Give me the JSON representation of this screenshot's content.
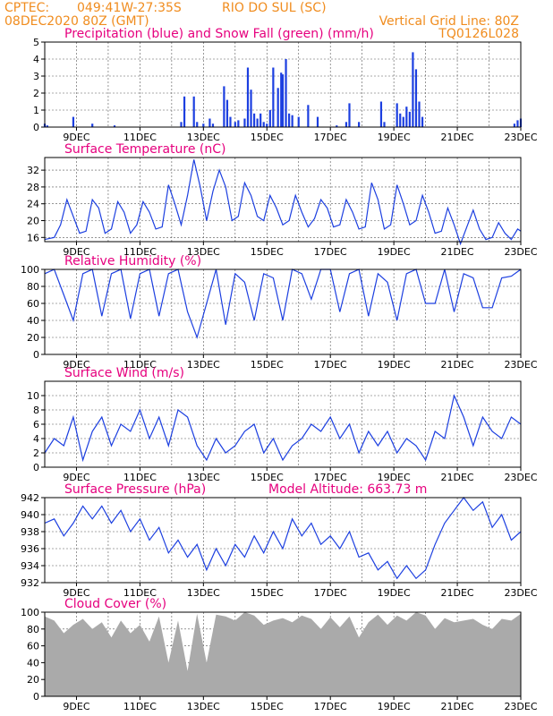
{
  "header": {
    "source": "CPTEC:",
    "coords": "049:41W-27:35S",
    "location": "RIO DO SUL (SC)",
    "run": "08DEC2020 80Z (GMT)",
    "vgrid": "Vertical Grid Line: 80Z",
    "code": "TQ0126L028"
  },
  "colors": {
    "header": "#f08c1e",
    "title": "#e6007e",
    "series": "#1c3fe0",
    "snow": "#22aa22",
    "cloud": "#aaaaaa",
    "grid": "#555555"
  },
  "date_ticks": [
    "9DEC",
    "11DEC",
    "13DEC",
    "15DEC",
    "17DEC",
    "19DEC",
    "21DEC",
    "23DEC"
  ],
  "chart_data": [
    {
      "type": "bar",
      "title": "Precipitation (blue) and Snow Fall (green) (mm/h)",
      "ylim": [
        0,
        5
      ],
      "yticks": [
        "0",
        "1",
        "2",
        "3",
        "4",
        "5"
      ],
      "series": [
        {
          "name": "Precipitation",
          "x": [
            8.0,
            8.08,
            8.9,
            9.5,
            10.2,
            12.3,
            12.4,
            12.7,
            12.8,
            13.0,
            13.2,
            13.3,
            13.65,
            13.75,
            13.85,
            14.0,
            14.1,
            14.3,
            14.4,
            14.5,
            14.6,
            14.7,
            14.8,
            14.9,
            15.0,
            15.1,
            15.2,
            15.35,
            15.45,
            15.5,
            15.6,
            15.7,
            15.8,
            16.0,
            16.3,
            16.6,
            17.2,
            17.5,
            17.6,
            17.9,
            18.6,
            18.7,
            19.1,
            19.2,
            19.3,
            19.4,
            19.5,
            19.6,
            19.7,
            19.8,
            19.9,
            22.8,
            22.9,
            23.0
          ],
          "values": [
            0.2,
            0.1,
            0.6,
            0.2,
            0.1,
            0.3,
            1.8,
            1.8,
            0.3,
            0.2,
            0.5,
            0.2,
            2.4,
            1.6,
            0.6,
            0.3,
            0.4,
            0.5,
            3.5,
            2.2,
            0.8,
            0.5,
            0.8,
            0.3,
            0.2,
            1.0,
            3.5,
            2.3,
            3.2,
            3.1,
            4.0,
            0.8,
            0.7,
            0.6,
            1.3,
            0.6,
            0.1,
            0.3,
            1.4,
            0.3,
            1.5,
            0.3,
            1.4,
            0.8,
            0.6,
            1.2,
            0.9,
            4.4,
            3.4,
            1.5,
            0.6,
            0.2,
            0.4,
            0.5
          ]
        },
        {
          "name": "Snow Fall",
          "x": [],
          "values": []
        }
      ]
    },
    {
      "type": "line",
      "title": "Surface Temperature (nC)",
      "ylim": [
        15,
        35
      ],
      "yticks": [
        "16",
        "20",
        "24",
        "28",
        "32"
      ],
      "x": [
        8.0,
        8.3,
        8.5,
        8.7,
        8.9,
        9.1,
        9.3,
        9.5,
        9.7,
        9.9,
        10.1,
        10.3,
        10.5,
        10.7,
        10.9,
        11.1,
        11.3,
        11.5,
        11.7,
        11.9,
        12.1,
        12.3,
        12.5,
        12.7,
        12.9,
        13.1,
        13.3,
        13.5,
        13.7,
        13.9,
        14.1,
        14.3,
        14.5,
        14.7,
        14.9,
        15.1,
        15.3,
        15.5,
        15.7,
        15.9,
        16.1,
        16.3,
        16.5,
        16.7,
        16.9,
        17.1,
        17.3,
        17.5,
        17.7,
        17.9,
        18.1,
        18.3,
        18.5,
        18.7,
        18.9,
        19.1,
        19.3,
        19.5,
        19.7,
        19.9,
        20.1,
        20.3,
        20.5,
        20.7,
        20.9,
        21.1,
        21.3,
        21.5,
        21.7,
        21.9,
        22.1,
        22.3,
        22.5,
        22.7,
        22.9,
        23.0
      ],
      "values": [
        15.5,
        16.0,
        19.0,
        25.0,
        21.0,
        17.0,
        17.5,
        25.0,
        23.0,
        17.0,
        18.0,
        24.5,
        22.0,
        17.0,
        19.0,
        24.5,
        22.0,
        18.0,
        18.5,
        28.5,
        24.0,
        19.0,
        26.0,
        34.5,
        28.0,
        20.0,
        27.0,
        32.0,
        28.0,
        20.0,
        21.0,
        29.0,
        26.0,
        21.0,
        20.0,
        26.0,
        23.0,
        19.0,
        20.0,
        26.0,
        22.0,
        18.5,
        20.5,
        25.0,
        23.0,
        18.5,
        19.0,
        25.0,
        22.0,
        18.0,
        18.5,
        29.0,
        25.0,
        18.0,
        19.0,
        28.5,
        24.0,
        19.0,
        20.0,
        26.0,
        22.0,
        17.0,
        17.5,
        23.0,
        19.0,
        14.5,
        18.5,
        22.5,
        18.0,
        15.5,
        16.0,
        19.5,
        17.0,
        15.5,
        18.0,
        17.5
      ]
    },
    {
      "type": "line",
      "title": "Relative Humidity (%)",
      "ylim": [
        0,
        100
      ],
      "yticks": [
        "0",
        "20",
        "40",
        "60",
        "80",
        "100"
      ],
      "x": [
        8.0,
        8.3,
        8.6,
        8.9,
        9.2,
        9.5,
        9.8,
        10.1,
        10.4,
        10.7,
        11.0,
        11.3,
        11.6,
        11.9,
        12.2,
        12.5,
        12.8,
        13.1,
        13.4,
        13.7,
        14.0,
        14.3,
        14.6,
        14.9,
        15.2,
        15.5,
        15.8,
        16.1,
        16.4,
        16.7,
        17.0,
        17.3,
        17.6,
        17.9,
        18.2,
        18.5,
        18.8,
        19.1,
        19.4,
        19.7,
        20.0,
        20.3,
        20.6,
        20.9,
        21.2,
        21.5,
        21.8,
        22.1,
        22.4,
        22.7,
        23.0
      ],
      "values": [
        95,
        100,
        70,
        40,
        95,
        100,
        45,
        95,
        100,
        42,
        95,
        100,
        45,
        95,
        100,
        50,
        20,
        60,
        100,
        35,
        95,
        85,
        40,
        95,
        90,
        40,
        100,
        95,
        65,
        100,
        100,
        50,
        95,
        100,
        45,
        95,
        85,
        40,
        95,
        100,
        60,
        60,
        100,
        50,
        95,
        90,
        55,
        55,
        90,
        92,
        100
      ]
    },
    {
      "type": "line",
      "title": "Surface Wind (m/s)",
      "ylim": [
        0,
        12
      ],
      "yticks": [
        "0",
        "2",
        "4",
        "6",
        "8",
        "10"
      ],
      "x": [
        8.0,
        8.3,
        8.6,
        8.9,
        9.2,
        9.5,
        9.8,
        10.1,
        10.4,
        10.7,
        11.0,
        11.3,
        11.6,
        11.9,
        12.2,
        12.5,
        12.8,
        13.1,
        13.4,
        13.7,
        14.0,
        14.3,
        14.6,
        14.9,
        15.2,
        15.5,
        15.8,
        16.1,
        16.4,
        16.7,
        17.0,
        17.3,
        17.6,
        17.9,
        18.2,
        18.5,
        18.8,
        19.1,
        19.4,
        19.7,
        20.0,
        20.3,
        20.6,
        20.9,
        21.2,
        21.5,
        21.8,
        22.1,
        22.4,
        22.7,
        23.0
      ],
      "values": [
        2,
        4,
        3,
        7,
        1,
        5,
        7,
        3,
        6,
        5,
        8,
        4,
        7,
        3,
        8,
        7,
        3,
        1,
        4,
        2,
        3,
        5,
        6,
        2,
        4,
        1,
        3,
        4,
        6,
        5,
        7,
        4,
        6,
        2,
        5,
        3,
        5,
        2,
        4,
        3,
        1,
        5,
        4,
        10,
        7,
        3,
        7,
        5,
        4,
        7,
        6
      ]
    },
    {
      "type": "line",
      "title": "Surface Pressure (hPa)",
      "annotation": "Model Altitude: 663.73 m",
      "ylim": [
        932,
        942
      ],
      "yticks": [
        "932",
        "934",
        "936",
        "938",
        "940",
        "942"
      ],
      "x": [
        8.0,
        8.3,
        8.6,
        8.9,
        9.2,
        9.5,
        9.8,
        10.1,
        10.4,
        10.7,
        11.0,
        11.3,
        11.6,
        11.9,
        12.2,
        12.5,
        12.8,
        13.1,
        13.4,
        13.7,
        14.0,
        14.3,
        14.6,
        14.9,
        15.2,
        15.5,
        15.8,
        16.1,
        16.4,
        16.7,
        17.0,
        17.3,
        17.6,
        17.9,
        18.2,
        18.5,
        18.8,
        19.1,
        19.4,
        19.7,
        20.0,
        20.3,
        20.6,
        20.9,
        21.2,
        21.5,
        21.8,
        22.1,
        22.4,
        22.7,
        23.0
      ],
      "values": [
        939.0,
        939.5,
        937.5,
        939.0,
        941.0,
        939.5,
        941.0,
        939.0,
        940.5,
        938.0,
        939.5,
        937.0,
        938.5,
        935.5,
        937.0,
        935.0,
        936.5,
        933.5,
        936.0,
        934.0,
        936.5,
        935.0,
        937.5,
        935.5,
        938.0,
        936.0,
        939.5,
        937.5,
        939.0,
        936.5,
        937.5,
        936.0,
        938.0,
        935.0,
        935.5,
        933.5,
        934.5,
        932.5,
        934.0,
        932.5,
        933.5,
        936.5,
        939.0,
        940.5,
        942.0,
        940.5,
        941.5,
        938.5,
        940.0,
        937.0,
        938.0
      ]
    },
    {
      "type": "area",
      "title": "Cloud Cover (%)",
      "ylim": [
        0,
        100
      ],
      "yticks": [
        "0",
        "20",
        "40",
        "60",
        "80",
        "100"
      ],
      "x": [
        8.0,
        8.3,
        8.6,
        8.9,
        9.2,
        9.5,
        9.8,
        10.1,
        10.4,
        10.7,
        11.0,
        11.3,
        11.6,
        11.9,
        12.2,
        12.5,
        12.8,
        13.1,
        13.4,
        13.7,
        14.0,
        14.3,
        14.6,
        14.9,
        15.2,
        15.5,
        15.8,
        16.1,
        16.4,
        16.7,
        17.0,
        17.3,
        17.6,
        17.9,
        18.2,
        18.5,
        18.8,
        19.1,
        19.4,
        19.7,
        20.0,
        20.3,
        20.6,
        20.9,
        21.2,
        21.5,
        21.8,
        22.1,
        22.4,
        22.7,
        23.0
      ],
      "values": [
        95,
        90,
        75,
        85,
        92,
        80,
        88,
        70,
        90,
        75,
        85,
        65,
        95,
        40,
        90,
        30,
        98,
        40,
        97,
        95,
        90,
        100,
        96,
        85,
        90,
        93,
        88,
        96,
        92,
        80,
        94,
        82,
        95,
        70,
        88,
        97,
        85,
        96,
        90,
        100,
        96,
        80,
        93,
        88,
        90,
        92,
        85,
        80,
        92,
        90,
        98
      ]
    }
  ]
}
